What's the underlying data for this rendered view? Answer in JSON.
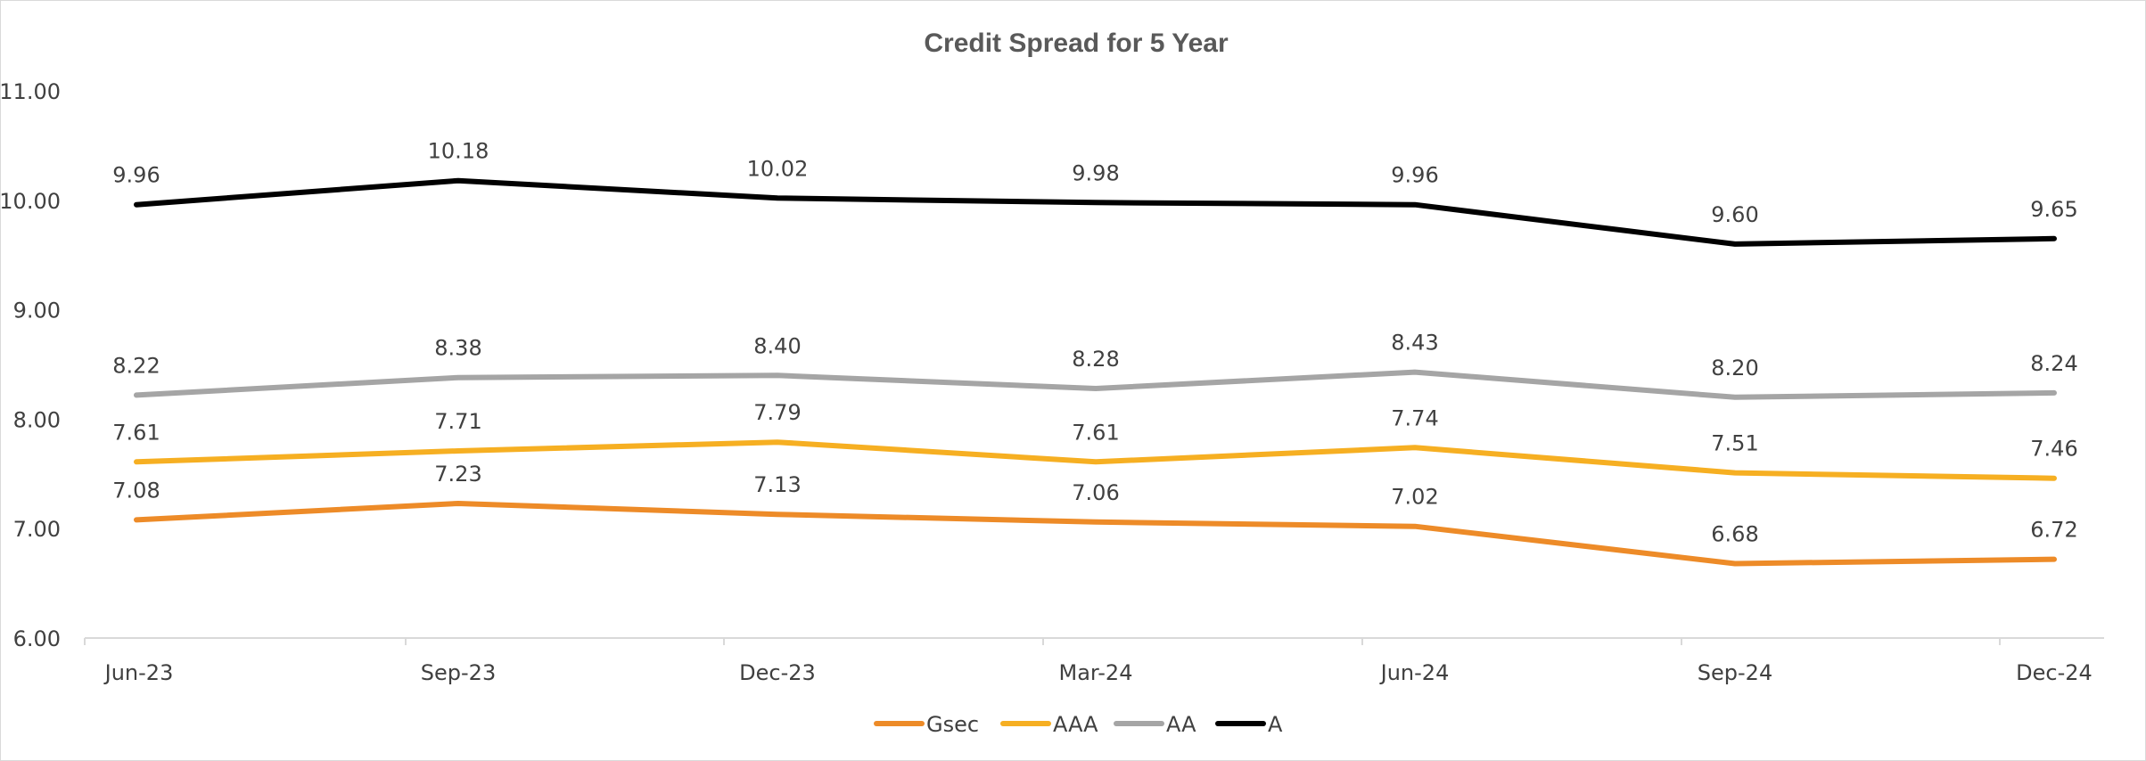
{
  "chart_data": {
    "type": "line",
    "title": "Credit Spread for 5 Year",
    "categories": [
      "Jun-23",
      "Sep-23",
      "Dec-23",
      "Mar-24",
      "Jun-24",
      "Sep-24",
      "Dec-24"
    ],
    "ylim": [
      6.0,
      11.0
    ],
    "yticks": [
      "6.00",
      "7.00",
      "8.00",
      "9.00",
      "10.00",
      "11.00"
    ],
    "grid": false,
    "legend": "bottom",
    "series": [
      {
        "name": "Gsec",
        "color": "#ED8B28",
        "values": [
          7.08,
          7.23,
          7.13,
          7.06,
          7.02,
          6.68,
          6.72
        ],
        "labels": [
          "7.08",
          "7.23",
          "7.13",
          "7.06",
          "7.02",
          "6.68",
          "6.72"
        ]
      },
      {
        "name": "AAA",
        "color": "#F6AF22",
        "values": [
          7.61,
          7.71,
          7.79,
          7.61,
          7.74,
          7.51,
          7.46
        ],
        "labels": [
          "7.61",
          "7.71",
          "7.79",
          "7.61",
          "7.74",
          "7.51",
          "7.46"
        ]
      },
      {
        "name": "AA",
        "color": "#A5A5A5",
        "values": [
          8.22,
          8.38,
          8.4,
          8.28,
          8.43,
          8.2,
          8.24
        ],
        "labels": [
          "8.22",
          "8.38",
          "8.40",
          "8.28",
          "8.43",
          "8.20",
          "8.24"
        ]
      },
      {
        "name": "A",
        "color": "#000000",
        "values": [
          9.96,
          10.18,
          10.02,
          9.98,
          9.96,
          9.6,
          9.65
        ],
        "labels": [
          "9.96",
          "10.18",
          "10.02",
          "9.98",
          "9.96",
          "9.60",
          "9.65"
        ]
      }
    ]
  }
}
